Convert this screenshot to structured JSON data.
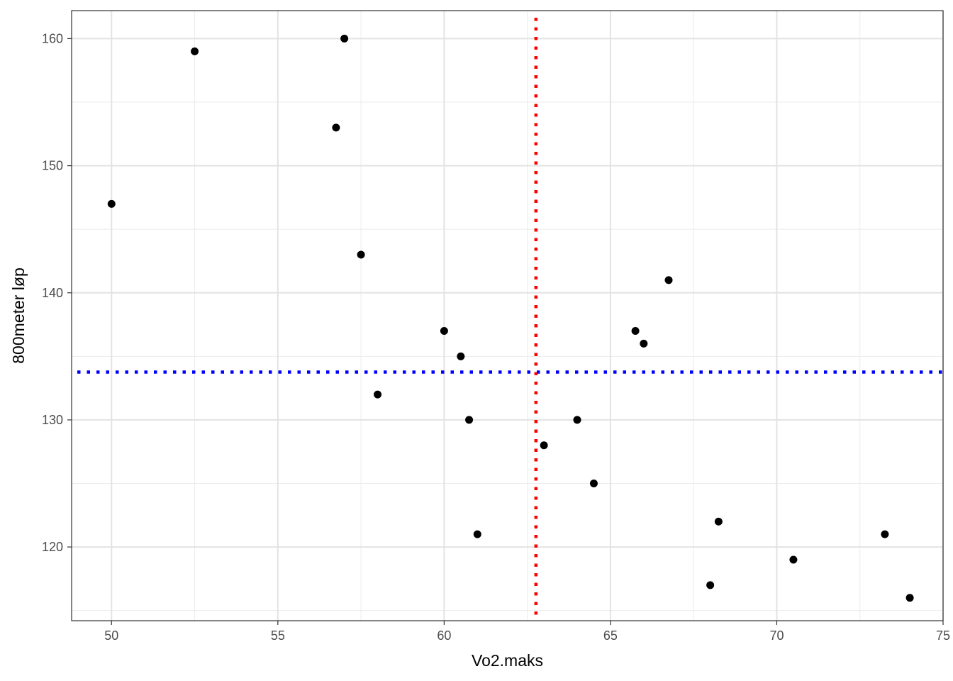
{
  "chart_data": {
    "type": "scatter",
    "title": "",
    "xlabel": "Vo2.maks",
    "ylabel": "800meter løp",
    "xlim": [
      48.8,
      75.0
    ],
    "ylim": [
      114.2,
      162.2
    ],
    "x_ticks": [
      50,
      55,
      60,
      65,
      70,
      75
    ],
    "x_tick_labels": [
      "50",
      "55",
      "60",
      "65",
      "70",
      "75"
    ],
    "y_ticks": [
      120,
      130,
      140,
      150,
      160
    ],
    "y_tick_labels": [
      "120",
      "130",
      "140",
      "150",
      "160"
    ],
    "grid": true,
    "points": [
      {
        "x": 50.0,
        "y": 147
      },
      {
        "x": 52.5,
        "y": 159
      },
      {
        "x": 56.75,
        "y": 153
      },
      {
        "x": 57.0,
        "y": 160
      },
      {
        "x": 57.5,
        "y": 143
      },
      {
        "x": 58.0,
        "y": 132
      },
      {
        "x": 60.0,
        "y": 137
      },
      {
        "x": 60.5,
        "y": 135
      },
      {
        "x": 60.75,
        "y": 130
      },
      {
        "x": 61.0,
        "y": 121
      },
      {
        "x": 63.0,
        "y": 128
      },
      {
        "x": 64.0,
        "y": 130
      },
      {
        "x": 64.5,
        "y": 125
      },
      {
        "x": 65.75,
        "y": 137
      },
      {
        "x": 66.0,
        "y": 136
      },
      {
        "x": 66.75,
        "y": 141
      },
      {
        "x": 68.0,
        "y": 117
      },
      {
        "x": 68.25,
        "y": 122
      },
      {
        "x": 70.5,
        "y": 119
      },
      {
        "x": 73.25,
        "y": 121
      },
      {
        "x": 74.0,
        "y": 116
      }
    ],
    "reference_lines": [
      {
        "orientation": "vertical",
        "value": 62.76,
        "color": "#ff0000",
        "style": "dotted"
      },
      {
        "orientation": "horizontal",
        "value": 133.76,
        "color": "#0000ff",
        "style": "dotted"
      }
    ],
    "point_color": "#000000"
  }
}
